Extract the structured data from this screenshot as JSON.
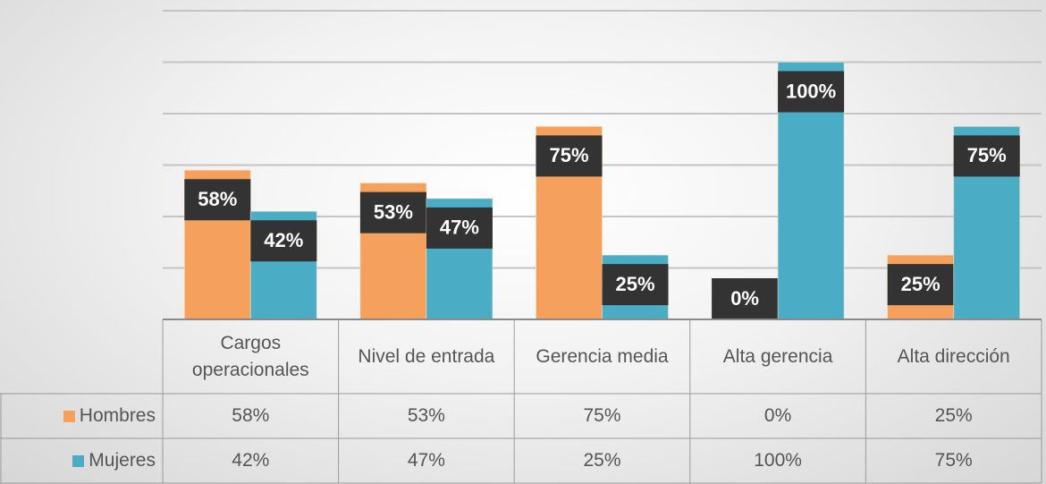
{
  "chart_data": {
    "type": "bar",
    "categories": [
      "Cargos operacionales",
      "Nivel de entrada",
      "Gerencia media",
      "Alta gerencia",
      "Alta dirección"
    ],
    "series": [
      {
        "name": "Hombres",
        "color": "#f5a05c",
        "values": [
          58,
          53,
          75,
          0,
          25
        ],
        "value_labels": [
          "58%",
          "53%",
          "75%",
          "0%",
          "25%"
        ]
      },
      {
        "name": "Mujeres",
        "color": "#4bacc6",
        "values": [
          42,
          47,
          25,
          100,
          75
        ],
        "value_labels": [
          "42%",
          "47%",
          "25%",
          "100%",
          "75%"
        ]
      }
    ],
    "ylim": [
      0,
      120
    ],
    "yticks": [
      0,
      20,
      40,
      60,
      80,
      100,
      120
    ],
    "grid": true
  }
}
